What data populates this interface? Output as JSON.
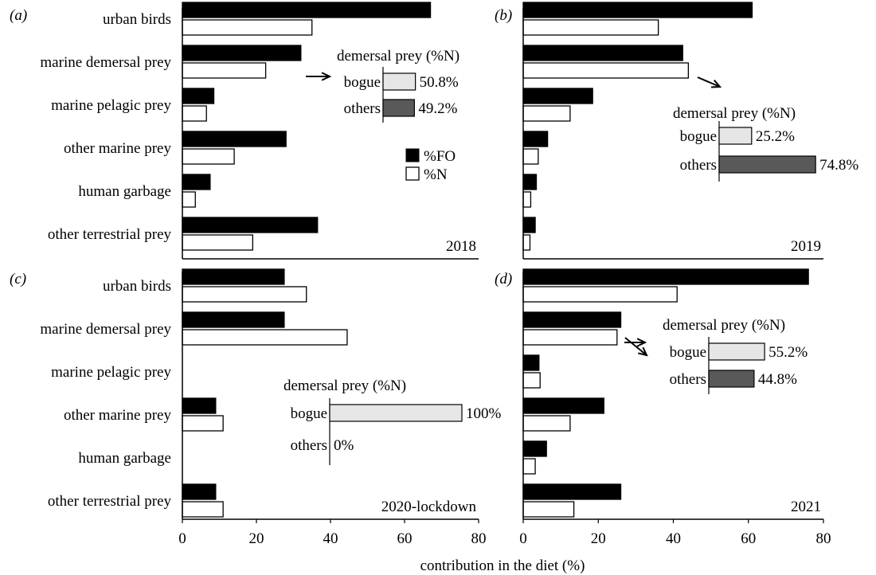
{
  "chart_data": {
    "type": "bar",
    "orientation": "horizontal",
    "categories": [
      "urban birds",
      "marine demersal prey",
      "marine pelagic prey",
      "other marine prey",
      "human garbage",
      "other terrestrial prey"
    ],
    "legend": [
      {
        "name": "%FO",
        "color": "#000000"
      },
      {
        "name": "%N",
        "color": "#ffffff"
      }
    ],
    "xlabel": "contribution in the diet (%)",
    "xlim": [
      0,
      80
    ],
    "xticks": [
      "0",
      "20",
      "40",
      "60",
      "80"
    ],
    "panels": [
      {
        "label": "(a)",
        "year": "2018",
        "series": [
          {
            "name": "%FO",
            "values": [
              67,
              32,
              8.5,
              28,
              7.5,
              36.5
            ]
          },
          {
            "name": "%N",
            "values": [
              35,
              22.5,
              6.5,
              14,
              3.5,
              19
            ]
          }
        ],
        "inset": {
          "title": "demersal prey (%N)",
          "items": [
            {
              "label": "bogue",
              "value": 50.8,
              "text": "50.8%",
              "color": "#e6e6e6"
            },
            {
              "label": "others",
              "value": 49.2,
              "text": "49.2%",
              "color": "#595959"
            }
          ]
        }
      },
      {
        "label": "(b)",
        "year": "2019",
        "series": [
          {
            "name": "%FO",
            "values": [
              61,
              42.5,
              18.5,
              6.5,
              3.5,
              3.2
            ]
          },
          {
            "name": "%N",
            "values": [
              36,
              44,
              12.5,
              4,
              2,
              1.8
            ]
          }
        ],
        "inset": {
          "title": "demersal prey (%N)",
          "items": [
            {
              "label": "bogue",
              "value": 25.2,
              "text": "25.2%",
              "color": "#e6e6e6"
            },
            {
              "label": "others",
              "value": 74.8,
              "text": "74.8%",
              "color": "#595959"
            }
          ]
        }
      },
      {
        "label": "(c)",
        "year": "2020-lockdown",
        "series": [
          {
            "name": "%FO",
            "values": [
              27.5,
              27.5,
              0,
              9,
              0,
              9
            ]
          },
          {
            "name": "%N",
            "values": [
              33.5,
              44.5,
              0,
              11,
              0,
              11
            ]
          }
        ],
        "inset": {
          "title": "demersal prey (%N)",
          "items": [
            {
              "label": "bogue",
              "value": 100,
              "text": "100%",
              "color": "#e6e6e6"
            },
            {
              "label": "others",
              "value": 0,
              "text": "0%",
              "color": "#595959"
            }
          ]
        }
      },
      {
        "label": "(d)",
        "year": "2021",
        "series": [
          {
            "name": "%FO",
            "values": [
              76,
              26,
              4.2,
              21.5,
              6.2,
              26
            ]
          },
          {
            "name": "%N",
            "values": [
              41,
              25,
              4.5,
              12.5,
              3.2,
              13.5
            ]
          }
        ],
        "inset": {
          "title": "demersal prey (%N)",
          "items": [
            {
              "label": "bogue",
              "value": 55.2,
              "text": "55.2%",
              "color": "#e6e6e6"
            },
            {
              "label": "others",
              "value": 44.8,
              "text": "44.8%",
              "color": "#595959"
            }
          ]
        }
      }
    ]
  }
}
